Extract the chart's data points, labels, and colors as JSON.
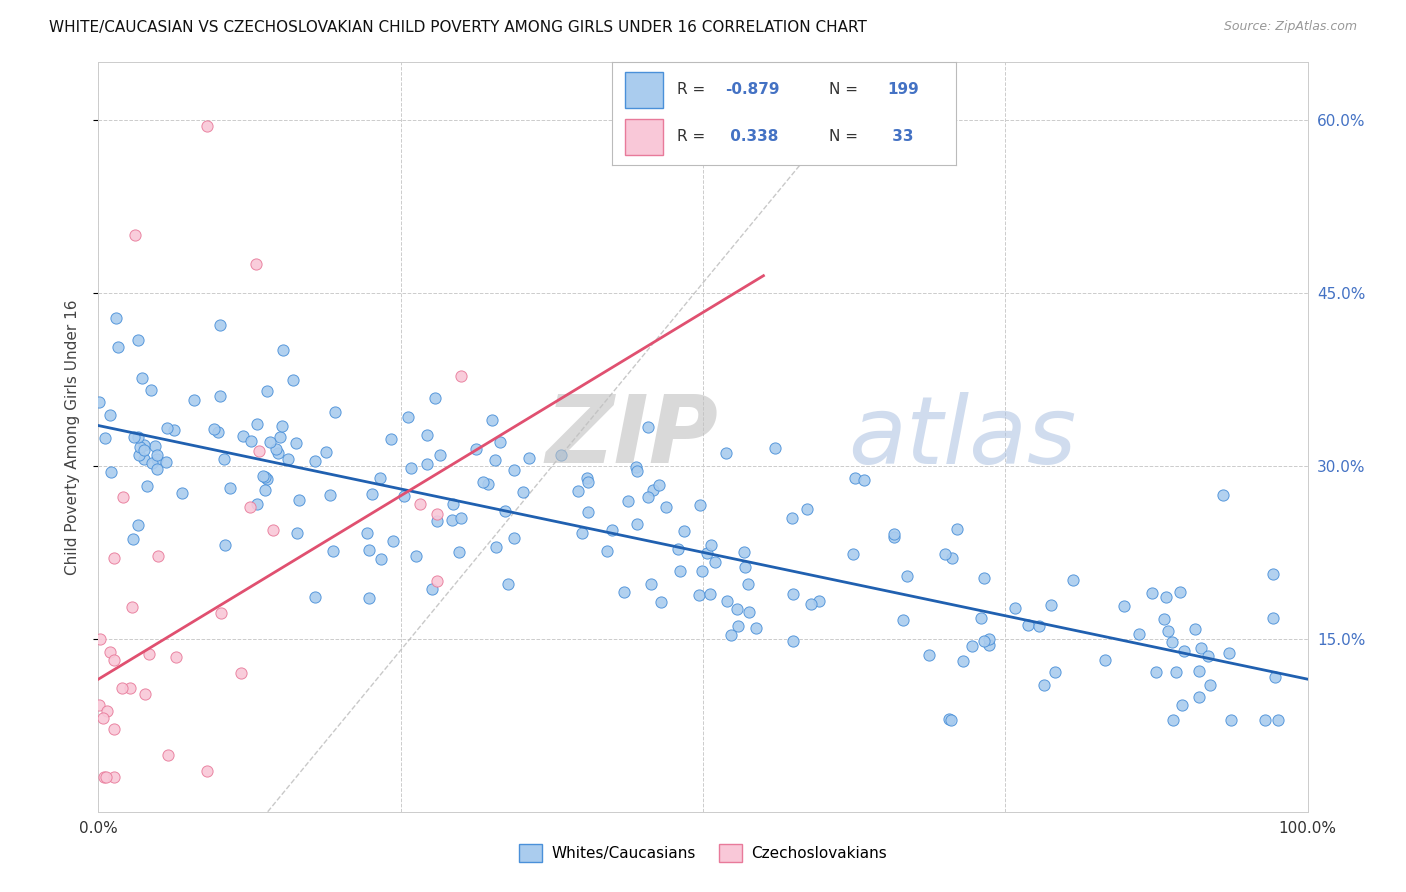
{
  "title": "WHITE/CAUCASIAN VS CZECHOSLOVAKIAN CHILD POVERTY AMONG GIRLS UNDER 16 CORRELATION CHART",
  "source": "Source: ZipAtlas.com",
  "ylabel": "Child Poverty Among Girls Under 16",
  "xlim": [
    0,
    1
  ],
  "ylim": [
    0,
    0.65
  ],
  "ytick_vals": [
    0.15,
    0.3,
    0.45,
    0.6
  ],
  "xtick_vals": [
    0.0,
    0.25,
    0.5,
    0.75,
    1.0
  ],
  "blue_edge_color": "#4a90d9",
  "blue_face_color": "#aaccee",
  "pink_edge_color": "#e87a9a",
  "pink_face_color": "#f9c8d8",
  "blue_line_color": "#2060b0",
  "pink_line_color": "#e05070",
  "blue_R": "-0.879",
  "blue_N": "199",
  "pink_R": "0.338",
  "pink_N": "33",
  "blue_line_x": [
    0.0,
    1.0
  ],
  "blue_line_y": [
    0.335,
    0.115
  ],
  "pink_line_x": [
    0.0,
    0.55
  ],
  "pink_line_y": [
    0.115,
    0.465
  ],
  "diag_line_x": [
    0.14,
    0.65
  ],
  "diag_line_y": [
    0.0,
    0.65
  ],
  "grid_color": "#cccccc",
  "right_tick_color": "#4472c4",
  "watermark_zip_color": "#cccccc",
  "watermark_atlas_color": "#aabbdd",
  "background_color": "#ffffff"
}
